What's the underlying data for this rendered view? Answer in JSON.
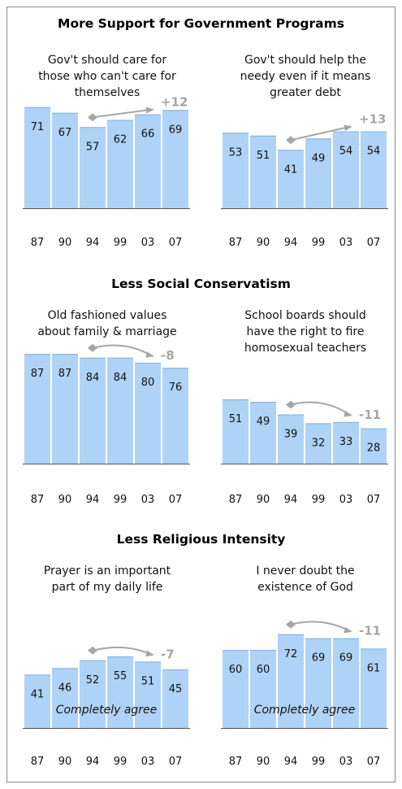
{
  "sections": [
    {
      "title": "More Support for Government Programs"
    },
    {
      "title": "Less Social Conservatism"
    },
    {
      "title": "Less Religious Intensity"
    }
  ],
  "years": [
    "87",
    "90",
    "94",
    "99",
    "03",
    "07"
  ],
  "colors": {
    "bar": "#aed3f6",
    "bar_edge": "#7fb2e2",
    "arrow": "#a6a6a6",
    "change": "#a6a6a6",
    "axis": "#555555"
  },
  "chart_data": [
    {
      "type": "bar",
      "subtitle": [
        "Gov't should care for",
        "those who can't care for",
        "themselves"
      ],
      "categories": [
        "87",
        "90",
        "94",
        "99",
        "03",
        "07"
      ],
      "values": [
        71,
        67,
        57,
        62,
        66,
        69
      ],
      "change": "+12",
      "arrow_from": "94",
      "arrow_to": "03",
      "inner_label": ""
    },
    {
      "type": "bar",
      "subtitle": [
        "Gov't should help the",
        "needy even if it means",
        "greater debt"
      ],
      "categories": [
        "87",
        "90",
        "94",
        "99",
        "03",
        "07"
      ],
      "values": [
        53,
        51,
        41,
        49,
        54,
        54
      ],
      "change": "+13",
      "arrow_from": "94",
      "arrow_to": "03",
      "inner_label": ""
    },
    {
      "type": "bar",
      "subtitle": [
        "Old fashioned values",
        "about family & marriage"
      ],
      "categories": [
        "87",
        "90",
        "94",
        "99",
        "03",
        "07"
      ],
      "values": [
        87,
        87,
        84,
        84,
        80,
        76
      ],
      "change": "-8",
      "arrow_from": "94",
      "arrow_to": "03",
      "inner_label": ""
    },
    {
      "type": "bar",
      "subtitle": [
        "School boards should",
        "have the right to fire",
        "homosexual teachers"
      ],
      "categories": [
        "87",
        "90",
        "94",
        "99",
        "03",
        "07"
      ],
      "values": [
        51,
        49,
        39,
        32,
        33,
        28
      ],
      "change": "-11",
      "arrow_from": "94",
      "arrow_to": "03",
      "inner_label": ""
    },
    {
      "type": "bar",
      "subtitle": [
        "Prayer is an important",
        "part of my daily life"
      ],
      "categories": [
        "87",
        "90",
        "94",
        "99",
        "03",
        "07"
      ],
      "values": [
        41,
        46,
        52,
        55,
        51,
        45
      ],
      "change": "-7",
      "arrow_from": "94",
      "arrow_to": "03",
      "inner_label": "Completely agree"
    },
    {
      "type": "bar",
      "subtitle": [
        "I never doubt the",
        "existence of God"
      ],
      "categories": [
        "87",
        "90",
        "94",
        "99",
        "03",
        "07"
      ],
      "values": [
        60,
        60,
        72,
        69,
        69,
        61
      ],
      "change": "-11",
      "arrow_from": "94",
      "arrow_to": "03",
      "inner_label": "Completely agree"
    }
  ]
}
